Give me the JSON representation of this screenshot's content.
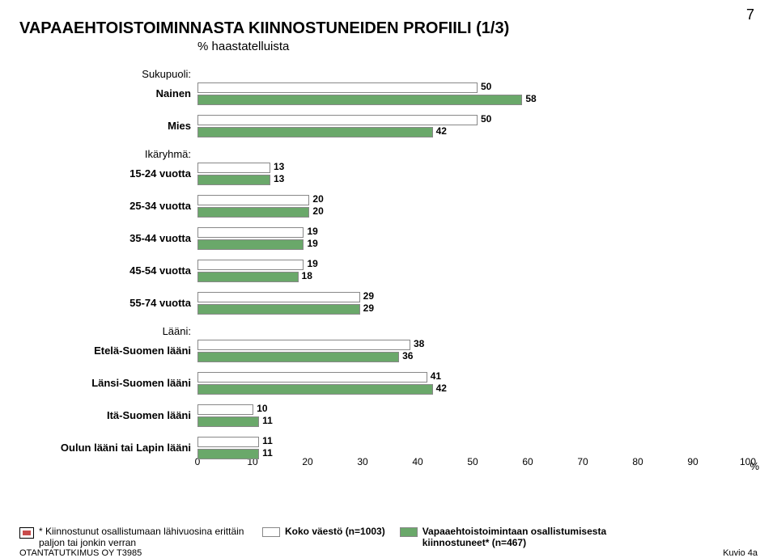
{
  "page_number": "7",
  "title": "VAPAAEHTOISTOIMINNASTA KIINNOSTUNEIDEN PROFIILI (1/3)",
  "subtitle": "% haastatelluista",
  "chart": {
    "type": "bar",
    "xmin": 0,
    "xmax": 100,
    "xtick_step": 10,
    "series_colors": [
      "#ffffff",
      "#6aa86a"
    ],
    "background_color": "#ffffff",
    "value_label_fontsize": 12,
    "cat_label_fontsize": 13,
    "groups": [
      {
        "header": "Sukupuoli:",
        "categories": [
          {
            "label": "Nainen",
            "values": [
              50,
              58
            ]
          },
          {
            "label": "Mies",
            "values": [
              50,
              42
            ]
          }
        ]
      },
      {
        "header": "Ikäryhmä:",
        "categories": [
          {
            "label": "15-24 vuotta",
            "values": [
              13,
              13
            ]
          },
          {
            "label": "25-34 vuotta",
            "values": [
              20,
              20
            ]
          },
          {
            "label": "35-44 vuotta",
            "values": [
              19,
              19
            ]
          },
          {
            "label": "45-54 vuotta",
            "values": [
              19,
              18
            ]
          },
          {
            "label": "55-74 vuotta",
            "values": [
              29,
              29
            ]
          }
        ]
      },
      {
        "header": "Lääni:",
        "categories": [
          {
            "label": "Etelä-Suomen lääni",
            "values": [
              38,
              36
            ]
          },
          {
            "label": "Länsi-Suomen lääni",
            "values": [
              41,
              42
            ]
          },
          {
            "label": "Itä-Suomen lääni",
            "values": [
              10,
              11
            ]
          },
          {
            "label": "Oulun lääni tai Lapin lääni",
            "values": [
              11,
              11
            ]
          }
        ]
      }
    ]
  },
  "pct_symbol": "%",
  "footnote_marker_text": "* Kiinnostunut osallistumaan lähivuosina erittäin paljon tai jonkin verran",
  "legend": [
    {
      "label": "Koko väestö (n=1003)",
      "color": "#ffffff"
    },
    {
      "label": "Vapaaehtoistoimintaan osallistumisesta kiinnostuneet* (n=467)",
      "color": "#6aa86a"
    }
  ],
  "bottom_left": "OTANTATUTKIMUS OY    T3985",
  "bottom_right": "Kuvio 4a"
}
